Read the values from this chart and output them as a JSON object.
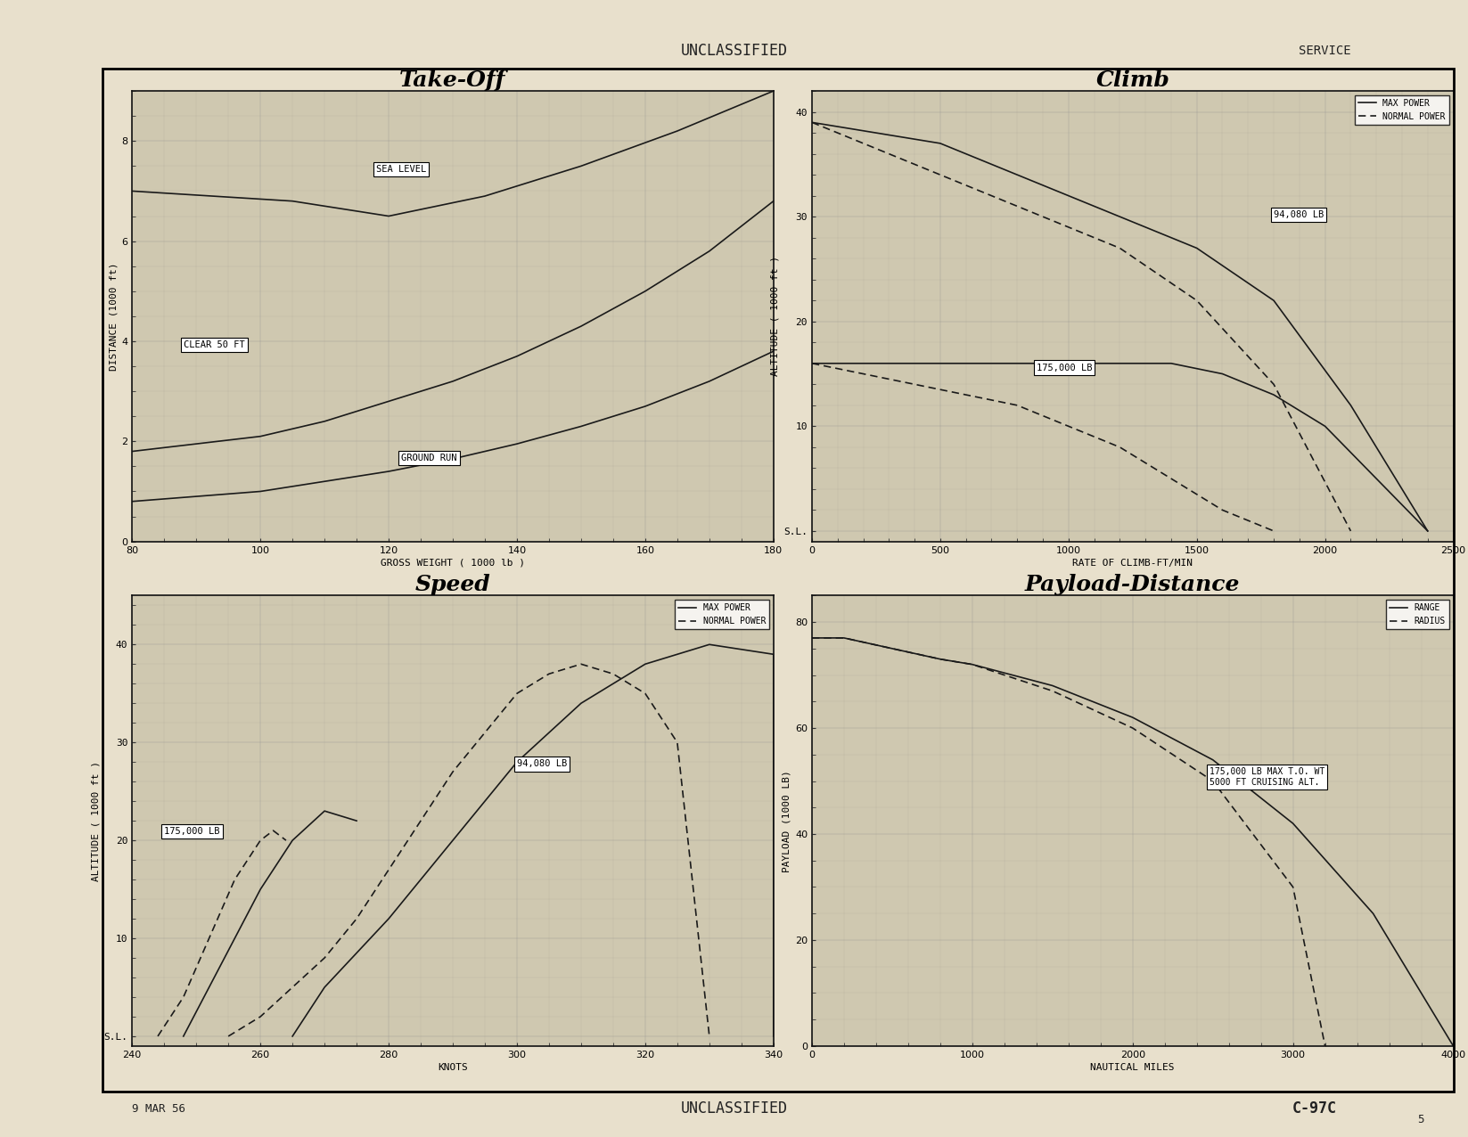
{
  "bg_color": "#e8e0cc",
  "grid_bg": "#d4ccb0",
  "line_color": "#1a1a1a",
  "page_title_top": "UNCLASSIFIED",
  "page_title_bottom": "UNCLASSIFIED",
  "service_label": "SERVICE",
  "date_label": "9 MAR 56",
  "doc_label": "C-97C",
  "page_num": "5",
  "takeoff": {
    "title": "Take-Off",
    "xlabel": "GROSS WEIGHT ( 1000 lb )",
    "ylabel": "DISTANCE (1000 ft)",
    "xlim": [
      80,
      180
    ],
    "ylim": [
      0,
      9
    ],
    "xticks": [
      80,
      100,
      120,
      140,
      160,
      180
    ],
    "yticks": [
      0,
      2,
      4,
      6,
      8
    ],
    "sea_level_x": [
      80,
      105,
      120,
      135,
      150,
      165,
      180
    ],
    "sea_level_y": [
      7.0,
      6.8,
      6.5,
      6.9,
      7.5,
      8.2,
      9.0
    ],
    "clear50_x": [
      80,
      100,
      110,
      120,
      130,
      140,
      150,
      160,
      170,
      180
    ],
    "clear50_y": [
      1.8,
      2.1,
      2.4,
      2.8,
      3.2,
      3.7,
      4.3,
      5.0,
      5.8,
      6.8
    ],
    "ground_x": [
      80,
      100,
      110,
      120,
      130,
      140,
      150,
      160,
      170,
      180
    ],
    "ground_y": [
      0.8,
      1.0,
      1.2,
      1.4,
      1.65,
      1.95,
      2.3,
      2.7,
      3.2,
      3.8
    ],
    "sea_label": "SEA LEVEL",
    "clear_label": "CLEAR 50 FT",
    "ground_label": "GROUND RUN"
  },
  "climb": {
    "title": "Climb",
    "xlabel": "RATE OF CLIMB-FT/MIN",
    "ylabel": "ALTITUDE ( 1000 ft )",
    "xlim": [
      0,
      2500
    ],
    "ylim": [
      -1,
      42
    ],
    "xticks": [
      0,
      500,
      1000,
      1500,
      2000,
      2500
    ],
    "yticks": [
      0,
      10,
      20,
      30,
      40
    ],
    "yticklabels": [
      "S.L.",
      "10",
      "20",
      "30",
      "40"
    ],
    "max_175_x": [
      0,
      200,
      500,
      800,
      1000,
      1200,
      1400,
      1600,
      1800,
      2000,
      2200,
      2400
    ],
    "max_175_y": [
      16,
      16,
      16,
      16,
      16,
      16,
      16,
      15,
      13,
      10,
      5,
      0
    ],
    "max_94_x": [
      0,
      500,
      900,
      1200,
      1500,
      1800,
      2100,
      2400
    ],
    "max_94_y": [
      39,
      37,
      33,
      30,
      27,
      22,
      12,
      0
    ],
    "norm_175_x": [
      0,
      200,
      400,
      600,
      800,
      1000,
      1200,
      1400,
      1600,
      1800
    ],
    "norm_175_y": [
      16,
      15,
      14,
      13,
      12,
      10,
      8,
      5,
      2,
      0
    ],
    "norm_94_x": [
      0,
      300,
      600,
      900,
      1200,
      1500,
      1800,
      2100
    ],
    "norm_94_y": [
      39,
      36,
      33,
      30,
      27,
      22,
      14,
      0
    ],
    "label_175": "175,000 LB",
    "label_94": "94,080 LB",
    "legend_max": "MAX POWER",
    "legend_norm": "NORMAL POWER"
  },
  "speed": {
    "title": "Speed",
    "xlabel": "KNOTS",
    "ylabel": "ALTITUDE ( 1000 ft )",
    "xlim": [
      240,
      340
    ],
    "ylim": [
      -1,
      45
    ],
    "xticks": [
      240,
      260,
      280,
      300,
      320,
      340
    ],
    "yticks": [
      0,
      10,
      20,
      30,
      40
    ],
    "yticklabels": [
      "S.L.",
      "10",
      "20",
      "30",
      "40"
    ],
    "max_94_x": [
      265,
      270,
      280,
      290,
      300,
      310,
      320,
      330,
      340,
      340
    ],
    "max_94_y": [
      0,
      5,
      12,
      20,
      28,
      34,
      38,
      40,
      39,
      0
    ],
    "max_175_x": [
      248,
      252,
      256,
      260,
      265,
      270,
      275
    ],
    "max_175_y": [
      0,
      5,
      10,
      15,
      20,
      23,
      22
    ],
    "norm_94_x": [
      255,
      260,
      265,
      270,
      275,
      280,
      285,
      290,
      295,
      300,
      305,
      310,
      315,
      320,
      325,
      330
    ],
    "norm_94_y": [
      0,
      2,
      5,
      8,
      12,
      17,
      22,
      27,
      31,
      35,
      37,
      38,
      37,
      35,
      30,
      0
    ],
    "norm_175_x": [
      244,
      246,
      248,
      250,
      252,
      254,
      256,
      258,
      260,
      262,
      264
    ],
    "norm_175_y": [
      0,
      2,
      4,
      7,
      10,
      13,
      16,
      18,
      20,
      21,
      20
    ],
    "label_175": "175,000 LB",
    "label_94": "94,080 LB",
    "legend_max": "MAX POWER",
    "legend_norm": "NORMAL POWER"
  },
  "payload": {
    "title": "Payload-Distance",
    "xlabel": "NAUTICAL MILES",
    "ylabel": "PAYLOAD (1000 LB)",
    "xlim": [
      0,
      4000
    ],
    "ylim": [
      0,
      85
    ],
    "xticks": [
      0,
      1000,
      2000,
      3000,
      4000
    ],
    "yticks": [
      0,
      20,
      40,
      60,
      80
    ],
    "range_x": [
      0,
      200,
      500,
      800,
      1000,
      1500,
      2000,
      2500,
      3000,
      3500,
      3800,
      4000
    ],
    "range_y": [
      77,
      77,
      75,
      73,
      72,
      68,
      62,
      54,
      42,
      25,
      10,
      0
    ],
    "radius_x": [
      0,
      200,
      500,
      800,
      1000,
      1500,
      2000,
      2500,
      3000,
      3200
    ],
    "radius_y": [
      77,
      77,
      75,
      73,
      72,
      67,
      60,
      50,
      30,
      0
    ],
    "label_note": "175,000 LB MAX T.O. WT\n5000 FT CRUISING ALT.",
    "legend_range": "RANGE",
    "legend_radius": "RADIUS"
  }
}
